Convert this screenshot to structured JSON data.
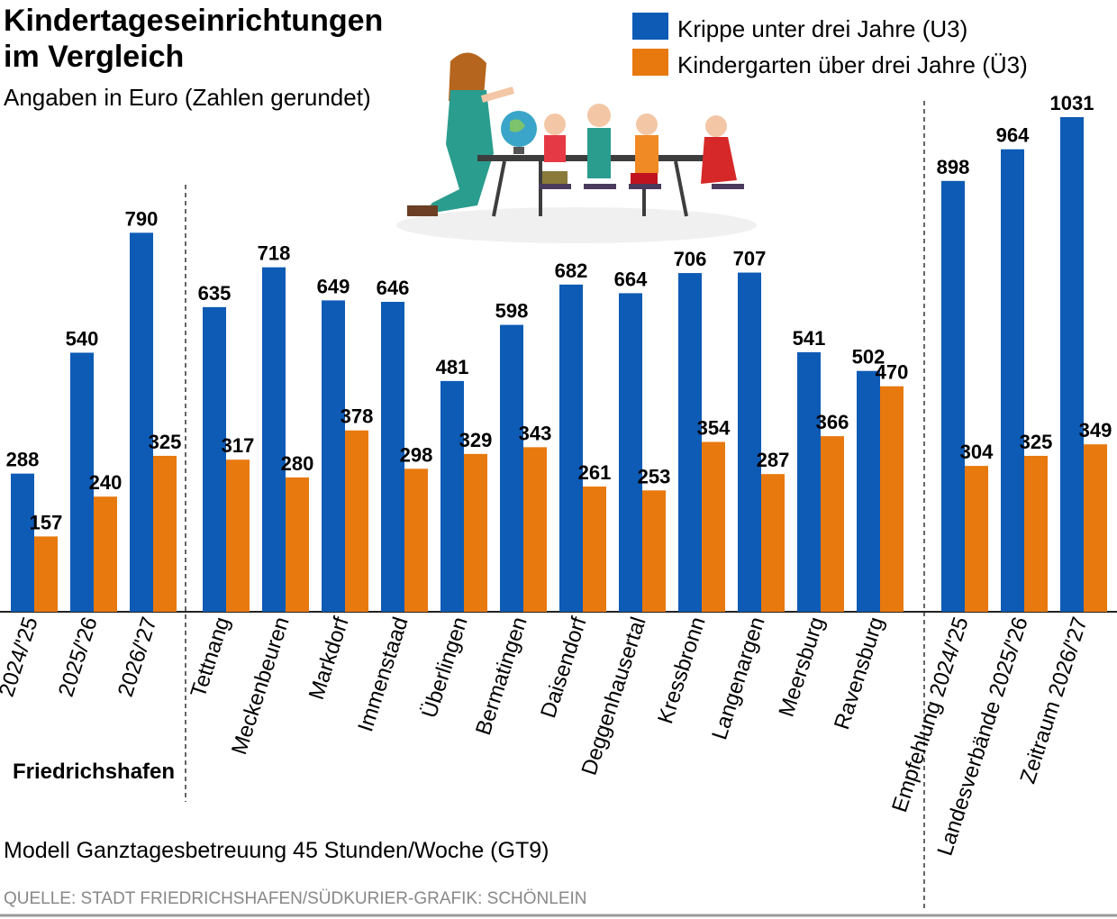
{
  "header": {
    "title_line1": "Kindertageseinrichtungen",
    "title_line2": "im Vergleich",
    "subtitle": "Angaben in Euro (Zahlen gerundet)"
  },
  "legend": [
    {
      "label": "Krippe unter drei Jahre (U3)",
      "color": "#0e5bb5"
    },
    {
      "label": "Kindergarten über drei Jahre (Ü3)",
      "color": "#e8790e"
    }
  ],
  "group_label": "Friedrichshafen",
  "footer": {
    "note": "Modell Ganztagesbetreuung 45 Stunden/Woche (GT9)",
    "source": "QUELLE: STADT FRIEDRICHSHAFEN/SÜDKURIER-GRAFIK: SCHÖNLEIN"
  },
  "illustration": {
    "icon": "teacher-with-children-illustration"
  },
  "chart_data": {
    "type": "bar",
    "title": "Kindertageseinrichtungen im Vergleich",
    "subtitle": "Angaben in Euro (Zahlen gerundet)",
    "ylim": [
      0,
      1031
    ],
    "grid": false,
    "legend_position": "top-right",
    "categories": [
      "2024/'25",
      "2025/'26",
      "2026/'27",
      "Tettnang",
      "Meckenbeuren",
      "Markdorf",
      "Immenstaad",
      "Überlingen",
      "Bermatingen",
      "Daisendorf",
      "Deggenhausertal",
      "Kressbronn",
      "Langenargen",
      "Meersburg",
      "Ravensburg",
      "Empfehlung 2024/'25",
      "Landesverbände 2025/'26",
      "Zeitraum 2026/'27"
    ],
    "series": [
      {
        "name": "Krippe unter drei Jahre (U3)",
        "color": "#0e5bb5",
        "values": [
          288,
          540,
          790,
          635,
          718,
          649,
          646,
          481,
          598,
          682,
          664,
          706,
          707,
          541,
          502,
          898,
          964,
          1031
        ]
      },
      {
        "name": "Kindergarten über drei Jahre (Ü3)",
        "color": "#e8790e",
        "values": [
          157,
          240,
          325,
          317,
          280,
          378,
          298,
          329,
          343,
          261,
          253,
          354,
          287,
          366,
          470,
          304,
          325,
          349
        ]
      }
    ]
  }
}
